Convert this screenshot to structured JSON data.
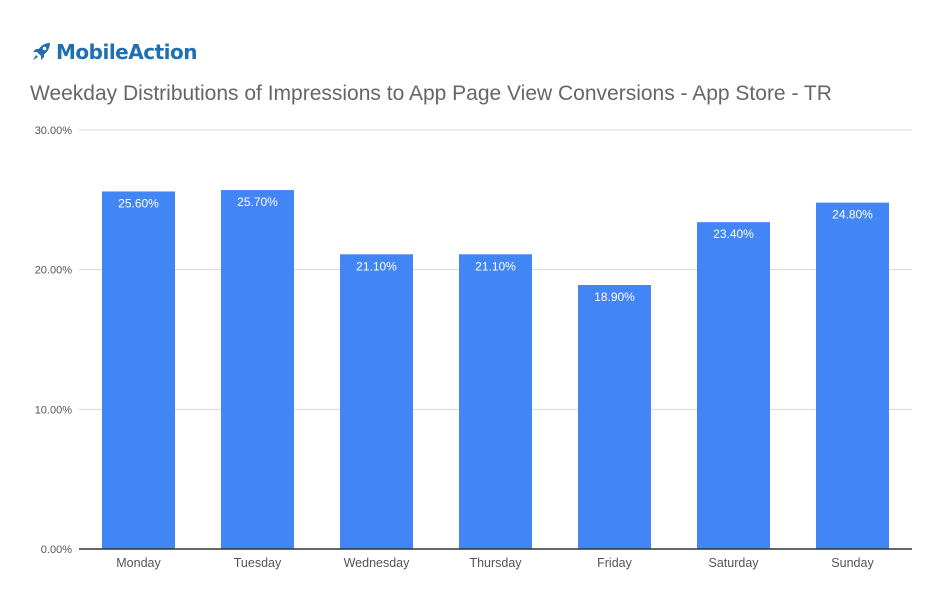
{
  "brand": {
    "name": "MobileAction",
    "icon": "rocket-icon",
    "color": "#1f6fb2"
  },
  "chart_data": {
    "type": "bar",
    "title": "Weekday Distributions of Impressions to App Page View Conversions - App Store - TR",
    "categories": [
      "Monday",
      "Tuesday",
      "Wednesday",
      "Thursday",
      "Friday",
      "Saturday",
      "Sunday"
    ],
    "values": [
      25.6,
      25.7,
      21.1,
      21.1,
      18.9,
      23.4,
      24.8
    ],
    "data_labels": [
      "25.60%",
      "25.70%",
      "21.10%",
      "21.10%",
      "18.90%",
      "23.40%",
      "24.80%"
    ],
    "yticks": [
      0,
      10,
      20,
      30
    ],
    "ytick_labels": [
      "0.00%",
      "10.00%",
      "20.00%",
      "30.00%"
    ],
    "ylim": [
      0,
      30
    ],
    "xlabel": "",
    "ylabel": "",
    "grid": true,
    "legend": "none",
    "bar_color": "#4285f4",
    "grid_color": "#d9d9d9",
    "axis_color": "#333333"
  }
}
